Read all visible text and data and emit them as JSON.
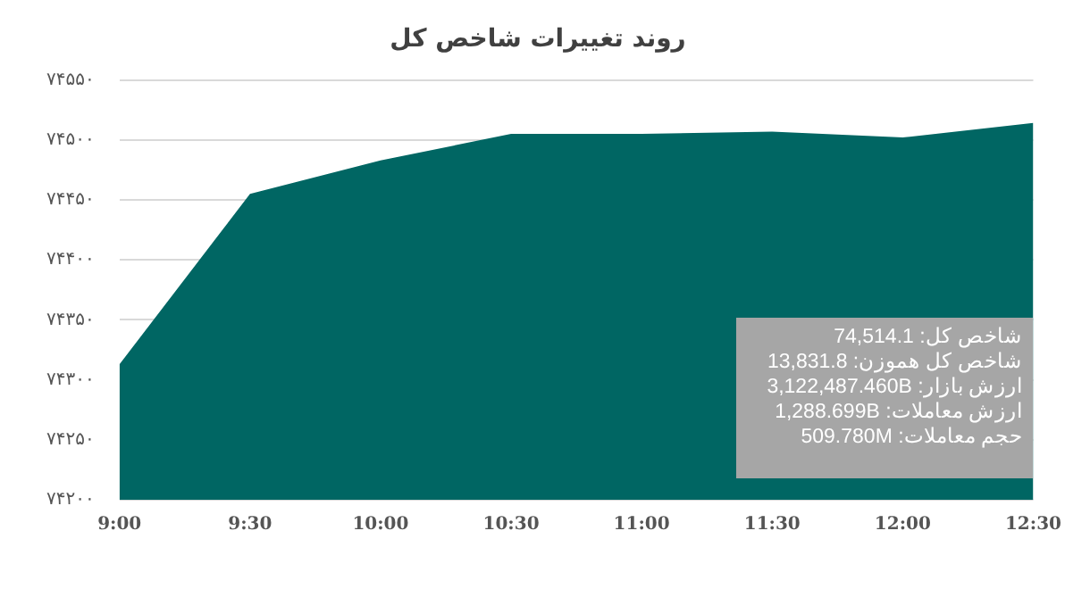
{
  "chart_data": {
    "type": "area",
    "title": "روند تغییرات شاخص کل",
    "categories": [
      "9:00",
      "9:30",
      "10:00",
      "10:30",
      "11:00",
      "11:30",
      "12:00",
      "12:30"
    ],
    "series": [
      {
        "color": "#006663",
        "values": [
          74313,
          74455,
          74483,
          74505,
          74505,
          74507,
          74502,
          74514.1
        ]
      }
    ],
    "ylim": [
      74200,
      74550
    ],
    "yticks": [
      {
        "value": 74200,
        "label": "۷۴۲۰۰"
      },
      {
        "value": 74250,
        "label": "۷۴۲۵۰"
      },
      {
        "value": 74300,
        "label": "۷۴۳۰۰"
      },
      {
        "value": 74350,
        "label": "۷۴۳۵۰"
      },
      {
        "value": 74400,
        "label": "۷۴۴۰۰"
      },
      {
        "value": 74450,
        "label": "۷۴۴۵۰"
      },
      {
        "value": 74500,
        "label": "۷۴۵۰۰"
      },
      {
        "value": 74550,
        "label": "۷۴۵۵۰"
      }
    ],
    "grid": "y",
    "legend": false,
    "annotations": [
      "شاخص کل: 74,514.1",
      "شاخص کل هموزن: 13,831.8",
      "ارزش بازار: 3,122,487.460B",
      "ارزش معاملات: 1,288.699B",
      "حجم معاملات: 509.780M"
    ]
  }
}
